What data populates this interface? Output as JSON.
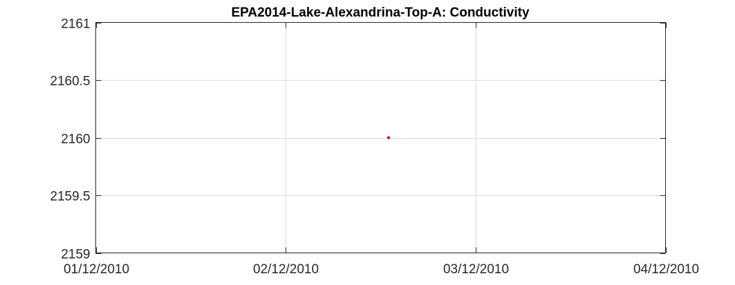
{
  "chart_data": {
    "type": "scatter",
    "title": "EPA2014-Lake-Alexandrina-Top-A: Conductivity",
    "xlabel": "",
    "ylabel": "",
    "x_axis": {
      "kind": "date",
      "range": [
        "2010-12-01",
        "2011-03-12"
      ],
      "ticks": [
        {
          "value": "2010-12-01",
          "label": "01/12/2010"
        },
        {
          "value": "2010-12-02",
          "label": "02/12/2010"
        },
        {
          "value": "2010-12-03",
          "label": "03/12/2010"
        },
        {
          "value": "2010-12-04",
          "label": "04/12/2010"
        }
      ]
    },
    "y_axis": {
      "range": [
        2159,
        2161
      ],
      "ticks": [
        2159,
        2159.5,
        2160,
        2160.5,
        2161
      ],
      "tick_labels": [
        "2159",
        "2159.5",
        "2160",
        "2160.5",
        "2161"
      ]
    },
    "series": [
      {
        "color": "#ff0000",
        "points": [
          {
            "x": "2010-12-02 13:00",
            "y": 2160
          }
        ]
      }
    ],
    "grid": true,
    "legend": "none"
  }
}
